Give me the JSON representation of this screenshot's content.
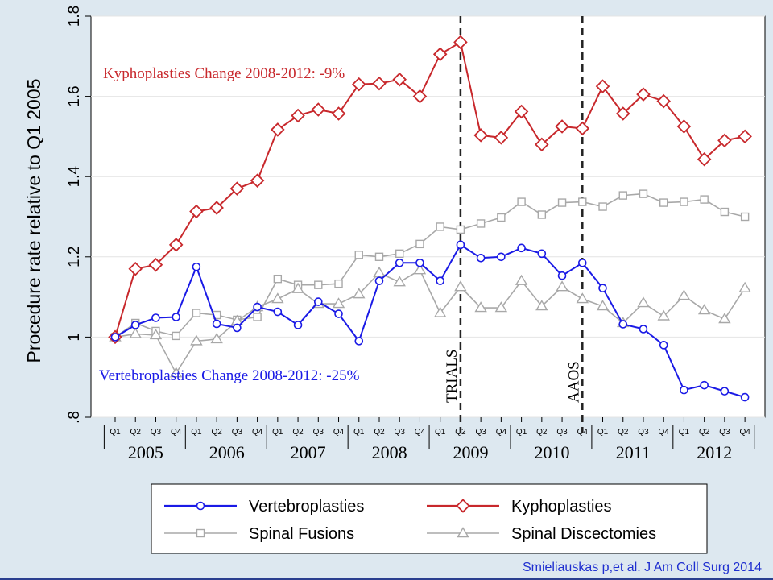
{
  "chart_data": {
    "type": "line",
    "ylabel": "Procedure rate relative to Q1 2005",
    "ylim": [
      0.8,
      1.8
    ],
    "yticks": [
      0.8,
      1,
      1.2,
      1.4,
      1.6,
      1.8
    ],
    "ytick_labels": [
      ".8",
      "1",
      "1.2",
      "1.4",
      "1.6",
      "1.8"
    ],
    "quarter_labels": [
      "Q1",
      "Q2",
      "Q3",
      "Q4"
    ],
    "years": [
      "2005",
      "2006",
      "2007",
      "2008",
      "2009",
      "2010",
      "2011",
      "2012"
    ],
    "series": [
      {
        "name": "Vertebroplasties",
        "color": "#1a1ae6",
        "marker": "circle",
        "values": [
          1.0,
          1.03,
          1.048,
          1.05,
          1.175,
          1.033,
          1.023,
          1.075,
          1.063,
          1.03,
          1.088,
          1.058,
          0.99,
          1.14,
          1.185,
          1.185,
          1.14,
          1.23,
          1.197,
          1.2,
          1.222,
          1.208,
          1.153,
          1.185,
          1.122,
          1.032,
          1.02,
          0.98,
          0.868,
          0.88,
          0.865,
          0.85
        ]
      },
      {
        "name": "Kyphoplasties",
        "color": "#c8282c",
        "marker": "diamond",
        "values": [
          1.0,
          1.17,
          1.18,
          1.23,
          1.313,
          1.322,
          1.37,
          1.39,
          1.517,
          1.552,
          1.567,
          1.557,
          1.63,
          1.632,
          1.642,
          1.6,
          1.705,
          1.735,
          1.503,
          1.497,
          1.562,
          1.48,
          1.525,
          1.52,
          1.625,
          1.557,
          1.605,
          1.588,
          1.525,
          1.443,
          1.49,
          1.5
        ]
      },
      {
        "name": "Spinal Fusions",
        "color": "#a8a8a8",
        "marker": "square",
        "values": [
          1.0,
          1.035,
          1.015,
          1.003,
          1.06,
          1.055,
          1.043,
          1.05,
          1.145,
          1.13,
          1.13,
          1.133,
          1.205,
          1.2,
          1.208,
          1.232,
          1.275,
          1.268,
          1.283,
          1.298,
          1.337,
          1.305,
          1.335,
          1.337,
          1.325,
          1.353,
          1.357,
          1.335,
          1.337,
          1.343,
          1.312,
          1.3
        ]
      },
      {
        "name": "Spinal Discectomies",
        "color": "#a8a8a8",
        "marker": "triangle",
        "values": [
          1.0,
          1.008,
          1.005,
          0.91,
          0.99,
          0.995,
          1.04,
          1.075,
          1.095,
          1.12,
          1.083,
          1.083,
          1.107,
          1.16,
          1.137,
          1.167,
          1.06,
          1.125,
          1.073,
          1.073,
          1.14,
          1.077,
          1.125,
          1.095,
          1.077,
          1.035,
          1.085,
          1.052,
          1.103,
          1.067,
          1.045,
          1.122
        ]
      }
    ],
    "vlines": [
      {
        "label": "TRIALS",
        "index": 17
      },
      {
        "label": "AAOS",
        "index": 23
      }
    ],
    "annotations": [
      {
        "text": "Kyphoplasties Change 2008-2012: -9%",
        "color": "#c8282c"
      },
      {
        "text": "Vertebroplasties Change 2008-2012: -25%",
        "color": "#1a1ae6"
      }
    ],
    "legend_position": "bottom",
    "grid": true
  },
  "citation": "Smieliauskas p,et al. J Am Coll Surg 2014"
}
